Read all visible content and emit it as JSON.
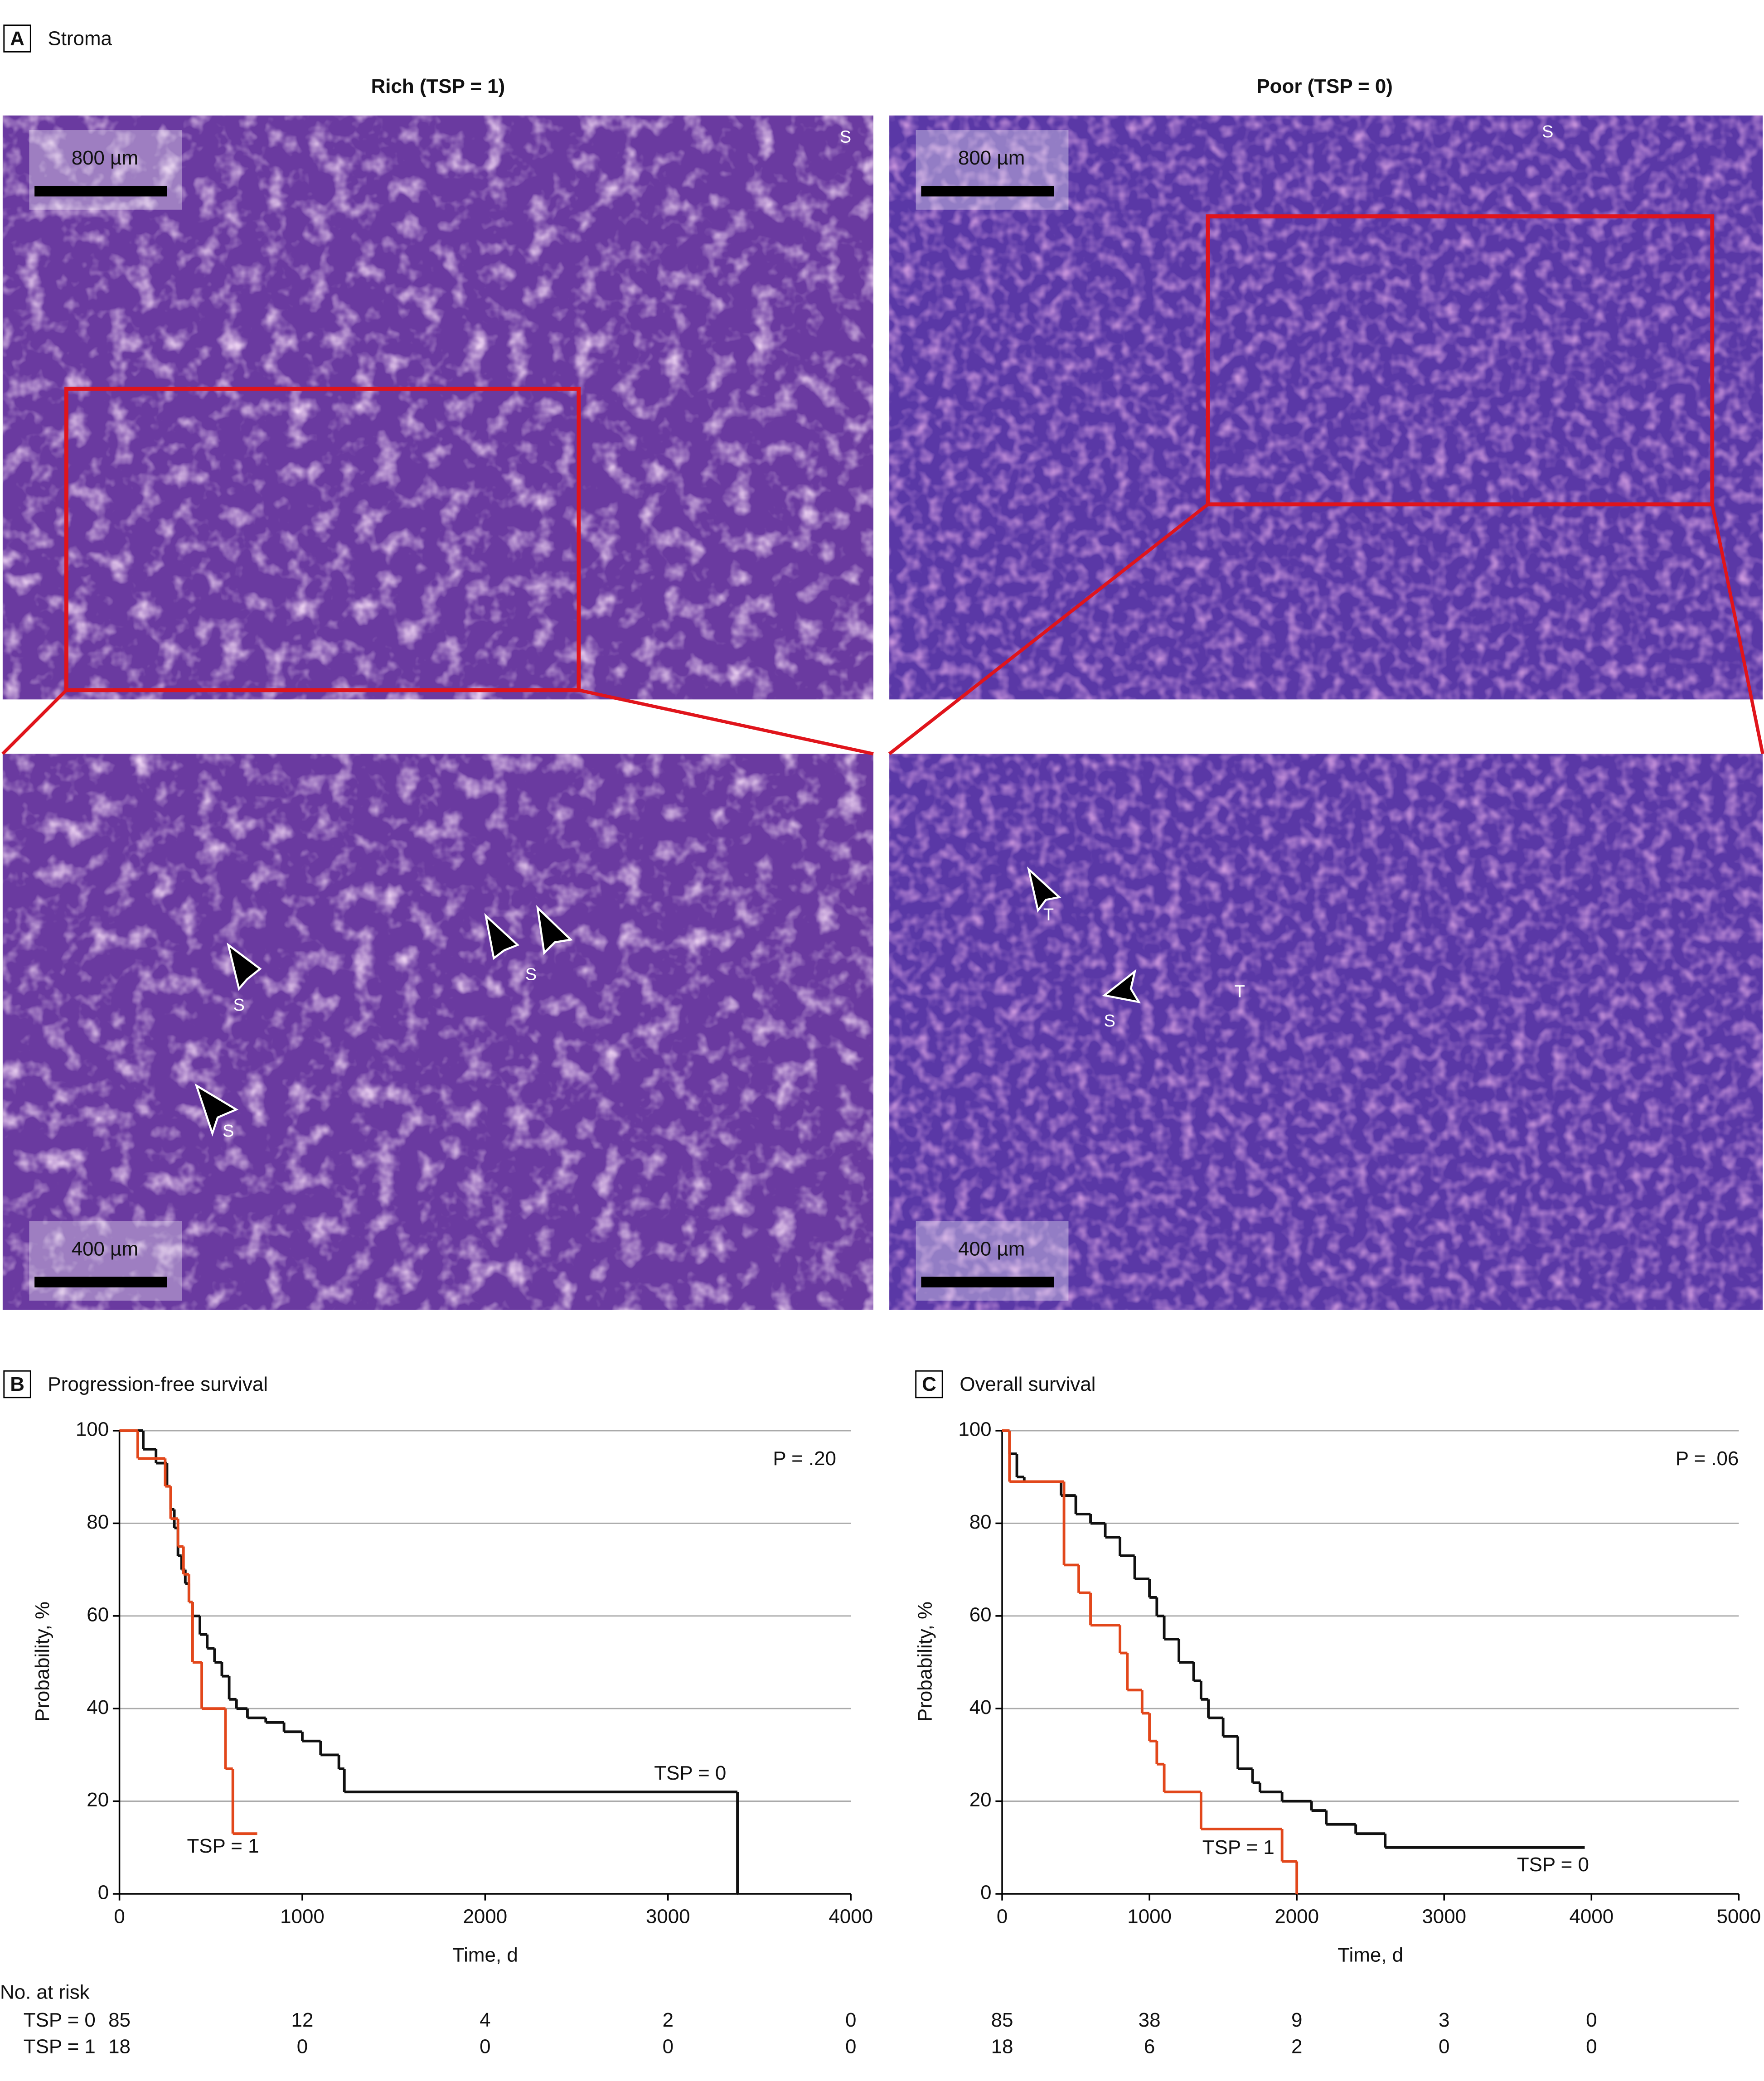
{
  "panel_a": {
    "letter": "A",
    "title": "Stroma",
    "left_title": "Rich (TSP = 1)",
    "right_title": "Poor (TSP = 0)",
    "scale_bars": [
      "800 µm",
      "800 µm",
      "400 µm",
      "400 µm"
    ],
    "annotations": [
      "S",
      "S",
      "S",
      "S",
      "T",
      "S",
      "S",
      "T"
    ]
  },
  "risk_table": {
    "title": "No. at risk",
    "rows": [
      "TSP = 0",
      "TSP = 1"
    ]
  },
  "chart_data": [
    {
      "type": "step",
      "panel": "B",
      "title": "Progression-free survival",
      "x_label": "Time, d",
      "y_label": "Probability, %",
      "annotation": "P = .20",
      "xlim": [
        0,
        4000
      ],
      "xticks": [
        0,
        1000,
        2000,
        3000,
        4000
      ],
      "ylim": [
        0,
        100
      ],
      "yticks": [
        0,
        20,
        40,
        60,
        80,
        100
      ],
      "grid": true,
      "series": [
        {
          "name": "TSP = 0",
          "color": "#111111",
          "x": [
            0,
            80,
            130,
            200,
            260,
            280,
            300,
            320,
            340,
            360,
            380,
            400,
            440,
            480,
            520,
            560,
            600,
            640,
            700,
            800,
            900,
            1000,
            1100,
            1200,
            1230,
            3380
          ],
          "values": [
            100,
            100,
            96,
            93,
            88,
            83,
            79,
            73,
            70,
            67,
            63,
            60,
            56,
            53,
            50,
            47,
            42,
            40,
            38,
            37,
            35,
            33,
            30,
            27,
            22,
            0
          ]
        },
        {
          "name": "TSP = 1",
          "color": "#e2471b",
          "x": [
            0,
            100,
            250,
            280,
            320,
            350,
            380,
            400,
            450,
            580,
            620,
            750
          ],
          "values": [
            100,
            94,
            88,
            81,
            75,
            69,
            63,
            50,
            40,
            27,
            13,
            13
          ]
        }
      ],
      "at_risk": [
        [
          85,
          12,
          4,
          2,
          0
        ],
        [
          18,
          0,
          0,
          0,
          0
        ]
      ]
    },
    {
      "type": "step",
      "panel": "C",
      "title": "Overall survival",
      "x_label": "Time, d",
      "y_label": "Probability, %",
      "annotation": "P = .06",
      "xlim": [
        0,
        5000
      ],
      "xticks": [
        0,
        1000,
        2000,
        3000,
        4000,
        5000
      ],
      "ylim": [
        0,
        100
      ],
      "yticks": [
        0,
        20,
        40,
        60,
        80,
        100
      ],
      "grid": true,
      "series": [
        {
          "name": "TSP = 0",
          "color": "#111111",
          "x": [
            0,
            50,
            100,
            150,
            400,
            500,
            600,
            700,
            800,
            900,
            1000,
            1050,
            1100,
            1200,
            1300,
            1350,
            1400,
            1500,
            1600,
            1700,
            1750,
            1900,
            2100,
            2200,
            2400,
            2600,
            3950
          ],
          "values": [
            100,
            95,
            90,
            89,
            86,
            82,
            80,
            77,
            73,
            68,
            64,
            60,
            55,
            50,
            46,
            42,
            38,
            34,
            27,
            24,
            22,
            20,
            18,
            15,
            13,
            10,
            10
          ]
        },
        {
          "name": "TSP = 1",
          "color": "#e2471b",
          "x": [
            0,
            50,
            420,
            520,
            600,
            800,
            850,
            950,
            1000,
            1050,
            1100,
            1350,
            1900,
            2000
          ],
          "values": [
            100,
            89,
            71,
            65,
            58,
            52,
            44,
            39,
            33,
            28,
            22,
            14,
            7,
            0
          ]
        }
      ],
      "at_risk": [
        [
          85,
          38,
          9,
          3,
          0
        ],
        [
          18,
          6,
          2,
          0,
          0
        ]
      ]
    }
  ]
}
